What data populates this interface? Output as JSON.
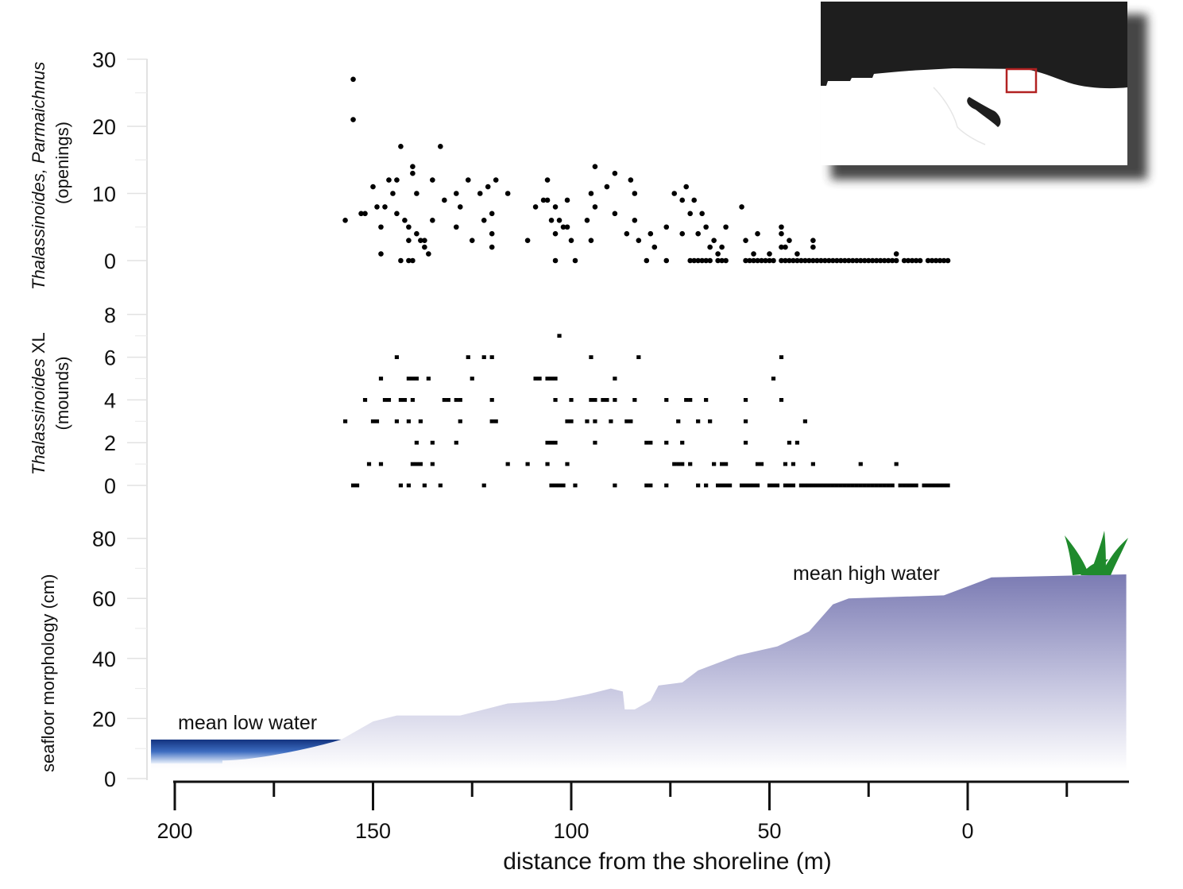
{
  "chart_data": [
    {
      "type": "scatter",
      "panel": "top",
      "ylabel_italic": "Thalassinoides, Parmaichnus",
      "ylabel_sub": "(openings)",
      "yticks": [
        "0",
        "10",
        "20",
        "30"
      ],
      "ylim": [
        0,
        30
      ],
      "points": [
        [
          157,
          6
        ],
        [
          155,
          27
        ],
        [
          155,
          21
        ],
        [
          153,
          7
        ],
        [
          152,
          7
        ],
        [
          150,
          11
        ],
        [
          149,
          8
        ],
        [
          148,
          5
        ],
        [
          148,
          1
        ],
        [
          147,
          8
        ],
        [
          146,
          12
        ],
        [
          145,
          10
        ],
        [
          144,
          7
        ],
        [
          144,
          12
        ],
        [
          143,
          17
        ],
        [
          142,
          6
        ],
        [
          141,
          5
        ],
        [
          141,
          3
        ],
        [
          140,
          14
        ],
        [
          140,
          13
        ],
        [
          139,
          4
        ],
        [
          139,
          10
        ],
        [
          138,
          3
        ],
        [
          137,
          3
        ],
        [
          137,
          2
        ],
        [
          136,
          1
        ],
        [
          135,
          12
        ],
        [
          135,
          6
        ],
        [
          133,
          17
        ],
        [
          132,
          9
        ],
        [
          129,
          10
        ],
        [
          128,
          8
        ],
        [
          129,
          5
        ],
        [
          126,
          12
        ],
        [
          125,
          3
        ],
        [
          123,
          10
        ],
        [
          122,
          6
        ],
        [
          121,
          11
        ],
        [
          120,
          7
        ],
        [
          120,
          4
        ],
        [
          120,
          2
        ],
        [
          119,
          12
        ],
        [
          116,
          10
        ],
        [
          111,
          3
        ],
        [
          109,
          8
        ],
        [
          107,
          9
        ],
        [
          106,
          12
        ],
        [
          106,
          9
        ],
        [
          105,
          6
        ],
        [
          104,
          8
        ],
        [
          104,
          4
        ],
        [
          103,
          6
        ],
        [
          102,
          5
        ],
        [
          101,
          9
        ],
        [
          101,
          5
        ],
        [
          100,
          3
        ],
        [
          96,
          6
        ],
        [
          95,
          10
        ],
        [
          95,
          3
        ],
        [
          94,
          14
        ],
        [
          94,
          8
        ],
        [
          91,
          11
        ],
        [
          89,
          13
        ],
        [
          89,
          7
        ],
        [
          86,
          4
        ],
        [
          85,
          12
        ],
        [
          84,
          10
        ],
        [
          84,
          6
        ],
        [
          83,
          3
        ],
        [
          80,
          4
        ],
        [
          79,
          2
        ],
        [
          76,
          5
        ],
        [
          74,
          10
        ],
        [
          72,
          9
        ],
        [
          72,
          4
        ],
        [
          71,
          11
        ],
        [
          70,
          7
        ],
        [
          69,
          9
        ],
        [
          68,
          4
        ],
        [
          67,
          7
        ],
        [
          66,
          5
        ],
        [
          65,
          2
        ],
        [
          64,
          3
        ],
        [
          63,
          1
        ],
        [
          62,
          2
        ],
        [
          61,
          5
        ],
        [
          57,
          8
        ],
        [
          56,
          3
        ],
        [
          54,
          1
        ],
        [
          53,
          4
        ],
        [
          50,
          1
        ],
        [
          47,
          5
        ],
        [
          47,
          4
        ],
        [
          47,
          2
        ],
        [
          46,
          2
        ],
        [
          45,
          3
        ],
        [
          43,
          1
        ],
        [
          39,
          3
        ],
        [
          39,
          2
        ],
        [
          18,
          1
        ]
      ],
      "zero_points": [
        143,
        141,
        140,
        104,
        99,
        81,
        76,
        70,
        69,
        68,
        67,
        66,
        65,
        63,
        62,
        61,
        56,
        55,
        54,
        53,
        52,
        51,
        50,
        49,
        47,
        46,
        45,
        44,
        43,
        42,
        41,
        40,
        39,
        38,
        37,
        36,
        35,
        34,
        33,
        32,
        31,
        30,
        29,
        28,
        27,
        26,
        25,
        24,
        23,
        22,
        21,
        20,
        19,
        18,
        16,
        15,
        14,
        13,
        12,
        10,
        9,
        8,
        7,
        6,
        5
      ]
    },
    {
      "type": "scatter",
      "panel": "middle",
      "ylabel_italic": "Thalassinoides",
      "ylabel_rest": " XL",
      "ylabel_sub": "(mounds)",
      "yticks": [
        "0",
        "2",
        "4",
        "6",
        "8"
      ],
      "ylim": [
        0,
        8
      ],
      "points": [
        [
          103,
          7
        ],
        [
          144,
          6
        ],
        [
          126,
          6
        ],
        [
          122,
          6
        ],
        [
          120,
          6
        ],
        [
          95,
          6
        ],
        [
          83,
          6
        ],
        [
          47,
          6
        ],
        [
          148,
          5
        ],
        [
          141,
          5
        ],
        [
          140,
          5
        ],
        [
          139,
          5
        ],
        [
          136,
          5
        ],
        [
          125,
          5
        ],
        [
          109,
          5
        ],
        [
          108,
          5
        ],
        [
          106,
          5
        ],
        [
          105,
          5
        ],
        [
          104,
          5
        ],
        [
          89,
          5
        ],
        [
          49,
          5
        ],
        [
          152,
          4
        ],
        [
          147,
          4
        ],
        [
          146,
          4
        ],
        [
          143,
          4
        ],
        [
          142,
          4
        ],
        [
          140,
          4
        ],
        [
          132,
          4
        ],
        [
          131,
          4
        ],
        [
          129,
          4
        ],
        [
          128,
          4
        ],
        [
          120,
          4
        ],
        [
          104,
          4
        ],
        [
          100,
          4
        ],
        [
          95,
          4
        ],
        [
          94,
          4
        ],
        [
          92,
          4
        ],
        [
          91,
          4
        ],
        [
          89,
          4
        ],
        [
          84,
          4
        ],
        [
          76,
          4
        ],
        [
          71,
          4
        ],
        [
          70,
          4
        ],
        [
          66,
          4
        ],
        [
          56,
          4
        ],
        [
          47,
          4
        ],
        [
          157,
          3
        ],
        [
          150,
          3
        ],
        [
          149,
          3
        ],
        [
          144,
          3
        ],
        [
          141,
          3
        ],
        [
          138,
          3
        ],
        [
          128,
          3
        ],
        [
          120,
          3
        ],
        [
          119,
          3
        ],
        [
          101,
          3
        ],
        [
          100,
          3
        ],
        [
          96,
          3
        ],
        [
          94,
          3
        ],
        [
          90,
          3
        ],
        [
          86,
          3
        ],
        [
          85,
          3
        ],
        [
          73,
          3
        ],
        [
          68,
          3
        ],
        [
          65,
          3
        ],
        [
          56,
          3
        ],
        [
          41,
          3
        ],
        [
          139,
          2
        ],
        [
          135,
          2
        ],
        [
          129,
          2
        ],
        [
          106,
          2
        ],
        [
          105,
          2
        ],
        [
          104,
          2
        ],
        [
          94,
          2
        ],
        [
          81,
          2
        ],
        [
          80,
          2
        ],
        [
          76,
          2
        ],
        [
          72,
          2
        ],
        [
          56,
          2
        ],
        [
          45,
          2
        ],
        [
          43,
          2
        ],
        [
          151,
          1
        ],
        [
          148,
          1
        ],
        [
          140,
          1
        ],
        [
          139,
          1
        ],
        [
          138,
          1
        ],
        [
          135,
          1
        ],
        [
          116,
          1
        ],
        [
          111,
          1
        ],
        [
          106,
          1
        ],
        [
          101,
          1
        ],
        [
          74,
          1
        ],
        [
          73,
          1
        ],
        [
          72,
          1
        ],
        [
          70,
          1
        ],
        [
          64,
          1
        ],
        [
          62,
          1
        ],
        [
          61,
          1
        ],
        [
          53,
          1
        ],
        [
          52,
          1
        ],
        [
          46,
          1
        ],
        [
          44,
          1
        ],
        [
          39,
          1
        ],
        [
          27,
          1
        ],
        [
          18,
          1
        ]
      ],
      "zero_points": [
        155,
        154,
        143,
        141,
        137,
        133,
        122,
        105,
        104,
        103,
        102,
        99,
        89,
        81,
        80,
        76,
        68,
        66,
        63,
        62,
        61,
        60,
        57,
        56,
        55,
        54,
        53,
        50,
        49,
        48,
        46,
        45,
        44,
        42,
        41,
        40,
        39,
        38,
        37,
        36,
        35,
        34,
        33,
        32,
        31,
        30,
        29,
        28,
        27,
        26,
        25,
        24,
        23,
        22,
        21,
        20,
        19,
        17,
        16,
        15,
        14,
        13,
        11,
        10,
        9,
        8,
        7,
        6,
        5
      ]
    },
    {
      "type": "area",
      "panel": "bottom",
      "ylabel": "seafloor morphology (cm)",
      "yticks": [
        "0",
        "20",
        "40",
        "60",
        "80"
      ],
      "ylim": [
        0,
        80
      ],
      "profile": [
        [
          206,
          5
        ],
        [
          188,
          6
        ],
        [
          170,
          9
        ],
        [
          158,
          13
        ],
        [
          150,
          19
        ],
        [
          144,
          21
        ],
        [
          128,
          21
        ],
        [
          116,
          25
        ],
        [
          104,
          26
        ],
        [
          96,
          28
        ],
        [
          90,
          30
        ],
        [
          87,
          29
        ],
        [
          86.5,
          23
        ],
        [
          84,
          23
        ],
        [
          80,
          26
        ],
        [
          78,
          31
        ],
        [
          72,
          32
        ],
        [
          68,
          36
        ],
        [
          58,
          41
        ],
        [
          48,
          44
        ],
        [
          40,
          49
        ],
        [
          34,
          58
        ],
        [
          30,
          60
        ],
        [
          6,
          61
        ],
        [
          0,
          64
        ],
        [
          -6,
          67
        ],
        [
          -40,
          68
        ]
      ],
      "water_level": 13,
      "water_extent": [
        206,
        158
      ],
      "annotations": [
        "mean low water",
        "mean high water"
      ],
      "colors": {
        "seafloor": "#7b7bb3",
        "water": "#13337f"
      }
    }
  ],
  "xaxis": {
    "title": "distance from the shoreline (m)",
    "ticks": [
      "200",
      "150",
      "100",
      "50",
      "0"
    ],
    "xlim": [
      206,
      -40
    ],
    "reversed": true
  },
  "inset": {
    "colors": {
      "sea": "#1e1e1e",
      "land": "#ffffff",
      "marker": "#b22222"
    }
  }
}
